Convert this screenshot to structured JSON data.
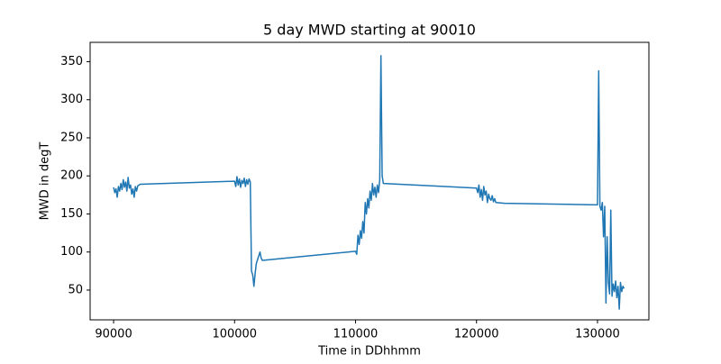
{
  "chart_data": {
    "type": "line",
    "title": "5 day MWD starting at 90010",
    "x_label": "Time in DDhhmm",
    "y_label": "MWD in degT",
    "x": [
      90000,
      90100,
      90200,
      90300,
      90400,
      90500,
      90600,
      90700,
      90800,
      90900,
      91000,
      91100,
      91200,
      91300,
      91400,
      91500,
      91600,
      91700,
      91800,
      91900,
      92000,
      92200,
      100000,
      100100,
      100200,
      100300,
      100400,
      100500,
      100600,
      100700,
      100800,
      100900,
      101000,
      101100,
      101200,
      101300,
      101400,
      101500,
      101600,
      101700,
      101800,
      101900,
      102000,
      102100,
      102200,
      102300,
      110000,
      110100,
      110200,
      110300,
      110400,
      110500,
      110600,
      110700,
      110800,
      110900,
      111000,
      111100,
      111200,
      111300,
      111400,
      111500,
      111600,
      111700,
      111800,
      111900,
      112000,
      112100,
      112200,
      112300,
      120000,
      120100,
      120200,
      120300,
      120400,
      120500,
      120600,
      120700,
      120800,
      120900,
      121000,
      121100,
      121200,
      121300,
      121400,
      121500,
      121600,
      122300,
      130000,
      130100,
      130200,
      130300,
      130400,
      130500,
      130600,
      130700,
      130800,
      130900,
      131000,
      131100,
      131200,
      131300,
      131400,
      131500,
      131600,
      131700,
      131800,
      131900,
      132000,
      132100,
      132200
    ],
    "values": [
      185,
      178,
      183,
      172,
      186,
      180,
      190,
      182,
      195,
      185,
      192,
      180,
      198,
      184,
      188,
      176,
      183,
      172,
      186,
      180,
      187,
      189,
      193,
      186,
      199,
      188,
      196,
      185,
      194,
      190,
      197,
      186,
      195,
      189,
      196,
      192,
      75,
      70,
      55,
      72,
      85,
      90,
      95,
      100,
      92,
      89,
      101,
      97,
      122,
      110,
      128,
      118,
      140,
      125,
      165,
      150,
      170,
      158,
      180,
      168,
      190,
      175,
      185,
      172,
      188,
      178,
      195,
      358,
      200,
      190,
      184,
      178,
      188,
      172,
      182,
      168,
      186,
      175,
      180,
      165,
      176,
      170,
      168,
      174,
      166,
      170,
      165,
      164,
      162,
      338,
      160,
      155,
      165,
      120,
      160,
      33,
      120,
      60,
      45,
      155,
      42,
      58,
      48,
      62,
      40,
      55,
      25,
      60,
      48,
      55,
      52
    ],
    "color": "#1f77b4",
    "xlim": [
      88060,
      134250
    ],
    "xticks": [
      90000,
      100000,
      110000,
      120000,
      130000
    ],
    "ylim": [
      10.9,
      375.4
    ],
    "yticks": [
      50,
      100,
      150,
      200,
      250,
      300,
      350
    ]
  }
}
